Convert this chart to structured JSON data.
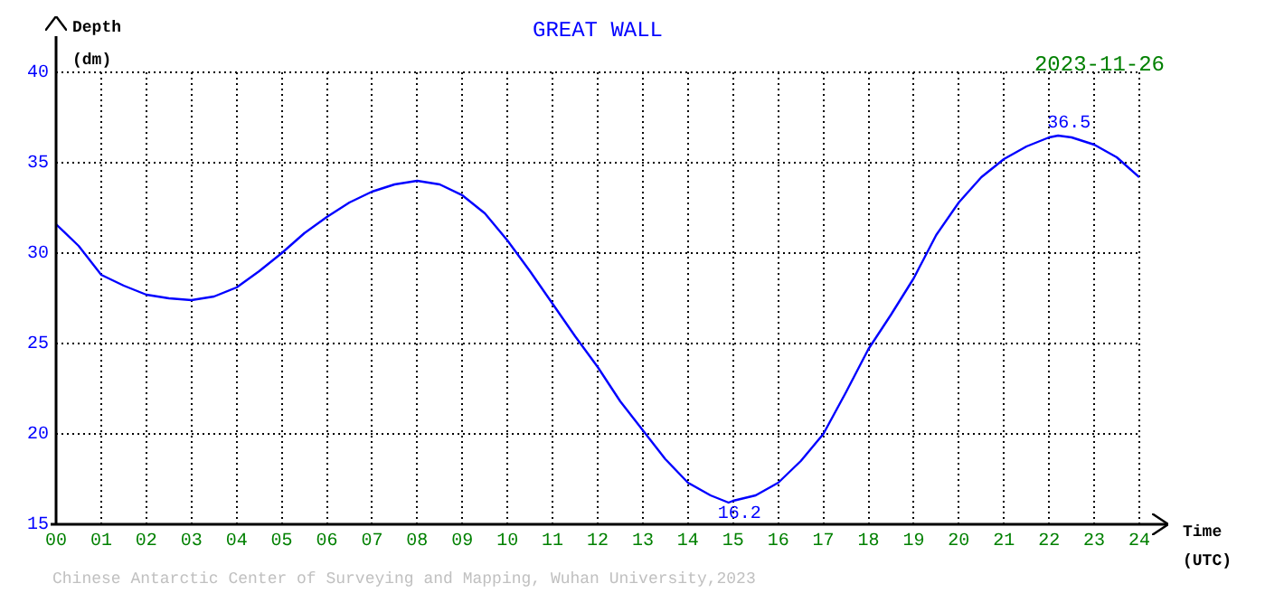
{
  "chart_data": {
    "type": "line",
    "title": "GREAT WALL",
    "subtitle": "2023-11-26",
    "ylabel": "Depth\n(dm)",
    "xlabel": "Time\n(UTC)",
    "annotations": [
      {
        "text": "36.5",
        "x": 22.2,
        "y": 36.5
      },
      {
        "text": "16.2",
        "x": 14.9,
        "y": 16.2
      },
      "Chinese Antarctic Center of Surveying and Mapping, Wuhan University,2023"
    ],
    "x": [
      0,
      0.5,
      1,
      1.5,
      2,
      2.5,
      3,
      3.5,
      4,
      4.5,
      5,
      5.5,
      6,
      6.5,
      7,
      7.5,
      8,
      8.5,
      9,
      9.5,
      10,
      10.5,
      11,
      11.5,
      12,
      12.5,
      13,
      13.5,
      14,
      14.5,
      14.9,
      15,
      15.5,
      16,
      16.5,
      17,
      17.5,
      18,
      18.5,
      19,
      19.5,
      20,
      20.5,
      21,
      21.5,
      22,
      22.2,
      22.5,
      23,
      23.5,
      24
    ],
    "series": [
      {
        "color": "#0000ff",
        "values": [
          31.6,
          30.4,
          28.8,
          28.2,
          27.7,
          27.5,
          27.4,
          27.6,
          28.1,
          29.0,
          30.0,
          31.1,
          32.0,
          32.8,
          33.4,
          33.8,
          34.0,
          33.8,
          33.2,
          32.2,
          30.7,
          29.0,
          27.2,
          25.4,
          23.7,
          21.8,
          20.2,
          18.6,
          17.3,
          16.6,
          16.2,
          16.3,
          16.6,
          17.3,
          18.5,
          20.0,
          22.3,
          24.7,
          26.6,
          28.6,
          31.0,
          32.8,
          34.2,
          35.2,
          35.9,
          36.4,
          36.5,
          36.4,
          36.0,
          35.3,
          34.2
        ]
      }
    ],
    "xlim": [
      0,
      24
    ],
    "xticks": [
      {
        "value": 0,
        "label": "00"
      },
      {
        "value": 1,
        "label": "01"
      },
      {
        "value": 2,
        "label": "02"
      },
      {
        "value": 3,
        "label": "03"
      },
      {
        "value": 4,
        "label": "04"
      },
      {
        "value": 5,
        "label": "05"
      },
      {
        "value": 6,
        "label": "06"
      },
      {
        "value": 7,
        "label": "07"
      },
      {
        "value": 8,
        "label": "08"
      },
      {
        "value": 9,
        "label": "09"
      },
      10,
      11,
      12,
      13,
      14,
      15,
      16,
      17,
      18,
      19,
      20,
      21,
      22,
      23,
      24
    ],
    "ylim": [
      15,
      40
    ],
    "yticks": [
      15,
      20,
      25,
      30,
      35,
      40
    ],
    "grid": true,
    "legend": false,
    "marker": "none",
    "line_style": "solid"
  }
}
